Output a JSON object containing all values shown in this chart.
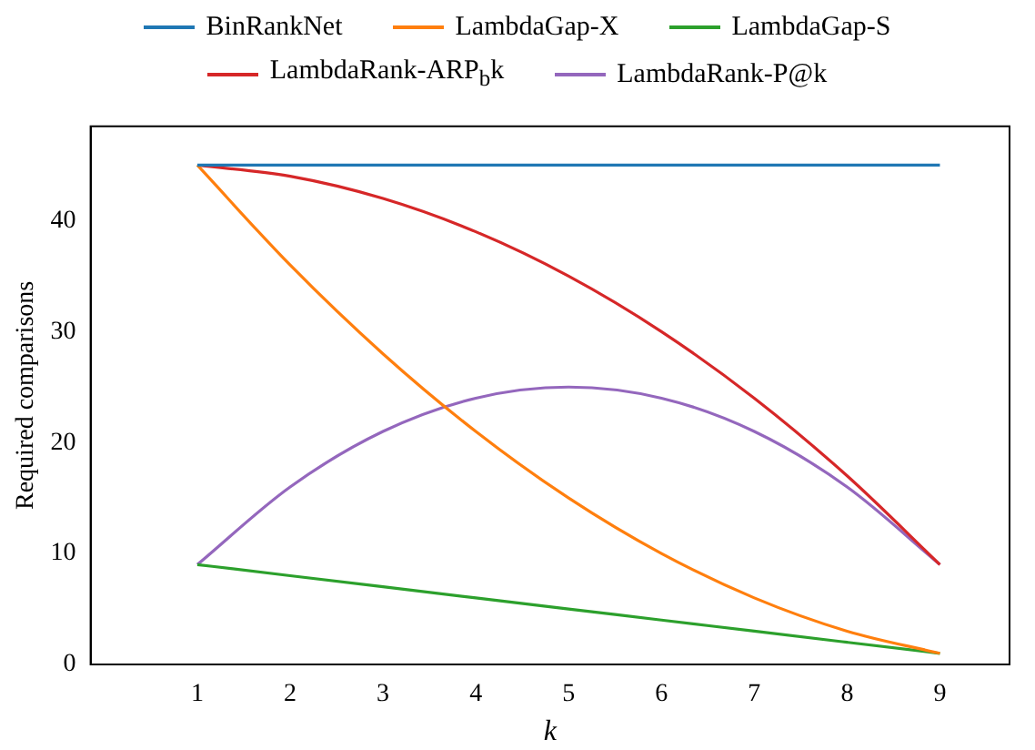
{
  "chart_data": {
    "type": "line",
    "xlabel": "k",
    "ylabel": "Required comparisons",
    "x": [
      1,
      2,
      3,
      4,
      5,
      6,
      7,
      8,
      9
    ],
    "series": [
      {
        "name": "BinRankNet",
        "color": "#1f77b4",
        "values": [
          45,
          45,
          45,
          45,
          45,
          45,
          45,
          45,
          45
        ]
      },
      {
        "name": "LambdaGap-X",
        "color": "#ff7f0e",
        "values": [
          45,
          36,
          28,
          21,
          15,
          10,
          6,
          3,
          1
        ]
      },
      {
        "name": "LambdaGap-S",
        "color": "#2ca02c",
        "values": [
          9,
          8,
          7,
          6,
          5,
          4,
          3,
          2,
          1
        ]
      },
      {
        "name": "LambdaRank-ARP$_{b}$k",
        "color": "#d62728",
        "values": [
          45,
          44,
          42,
          39,
          35,
          30,
          24,
          17,
          9
        ]
      },
      {
        "name": "LambdaRank-P@k",
        "color": "#9467bd",
        "values": [
          9,
          16,
          21,
          24,
          25,
          24,
          21,
          16,
          9
        ]
      }
    ],
    "xlim": [
      -0.15,
      9.75
    ],
    "xticks": [
      1,
      2,
      3,
      4,
      5,
      6,
      7,
      8,
      9
    ],
    "ylim": [
      0,
      48.5
    ],
    "yticks": [
      0,
      10,
      20,
      30,
      40
    ],
    "grid": false,
    "legend": "top",
    "marker": "none",
    "line_style": "solid"
  }
}
